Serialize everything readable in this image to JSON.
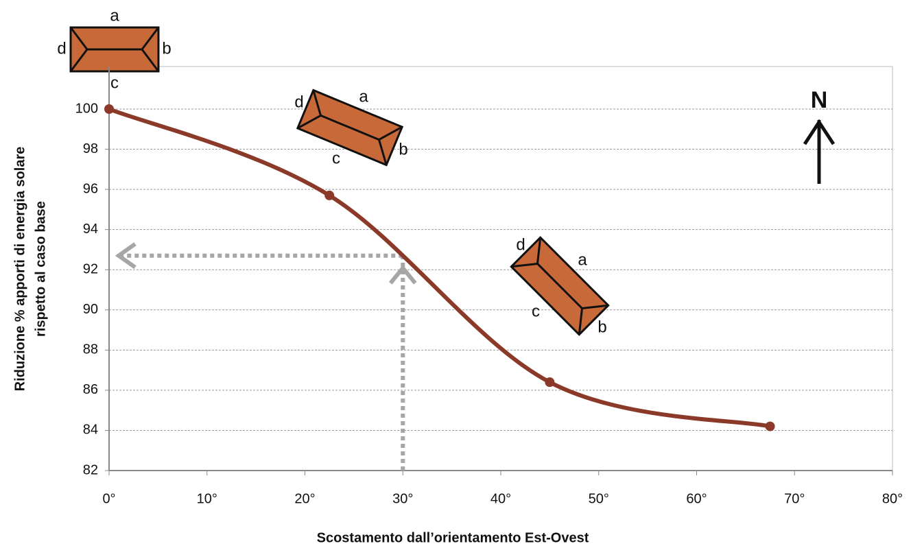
{
  "chart_data": {
    "type": "line",
    "smooth": true,
    "x": [
      0,
      22.5,
      45,
      67.5
    ],
    "values": [
      100,
      95.7,
      86.4,
      84.2
    ],
    "color": "#8b3a2a",
    "xlim": [
      0,
      80
    ],
    "xticks": [
      {
        "value": 0,
        "label": "0°"
      },
      {
        "value": 10,
        "label": "10°"
      },
      {
        "value": 20,
        "label": "20°"
      },
      {
        "value": 30,
        "label": "30°"
      },
      {
        "value": 40,
        "label": "40°"
      },
      {
        "value": 50,
        "label": "50°"
      },
      {
        "value": 60,
        "label": "60°"
      },
      {
        "value": 70,
        "label": "70°"
      },
      {
        "value": 80,
        "label": "80°"
      }
    ],
    "ylim": [
      82,
      100
    ],
    "yticks": [
      82,
      84,
      86,
      88,
      90,
      92,
      94,
      96,
      98,
      100
    ],
    "grid": true,
    "x_label": "Scostamento dall’orientamento Est-Ovest",
    "y_label": [
      "Riduzione % apporti di energia solare",
      "rispetto al caso base"
    ],
    "reference": {
      "x": 30,
      "y": 92.7,
      "color": "#a6a6a6"
    },
    "building_labels": [
      "a",
      "b",
      "c",
      "d"
    ],
    "north_label": "N"
  }
}
